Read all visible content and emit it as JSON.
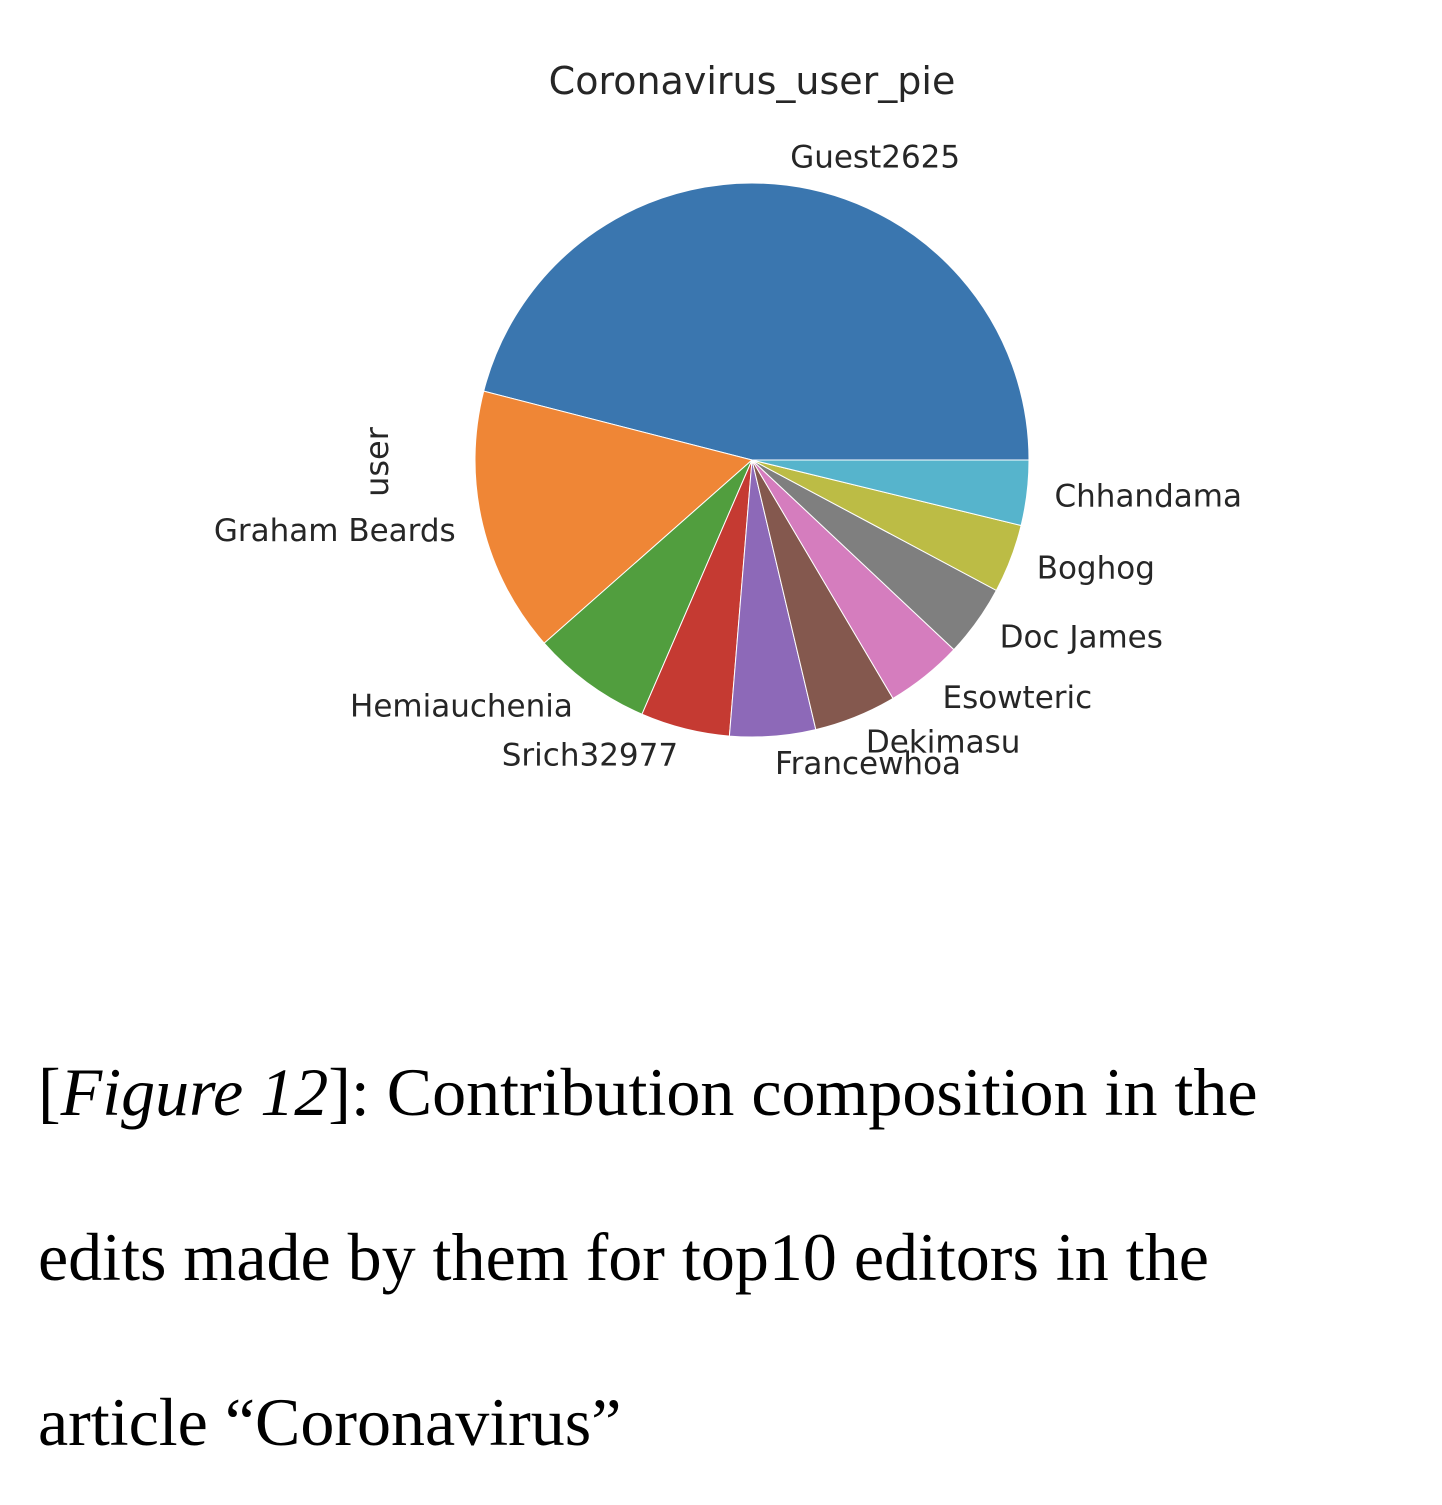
{
  "chart_data": {
    "type": "pie",
    "title": "Coronavirus_user_pie",
    "ylabel": "user",
    "start_angle_deg": 0,
    "direction": "counterclockwise",
    "slices": [
      {
        "label": "Guest2625",
        "value": 46.0,
        "color": "#3a76af"
      },
      {
        "label": "Graham Beards",
        "value": 15.5,
        "color": "#ef8636"
      },
      {
        "label": "Hemiauchenia",
        "value": 7.0,
        "color": "#519e3e"
      },
      {
        "label": "Srich32977",
        "value": 5.2,
        "color": "#c53a32"
      },
      {
        "label": "Francewhoa",
        "value": 5.0,
        "color": "#8d69b8"
      },
      {
        "label": "Dekimasu",
        "value": 4.8,
        "color": "#84584e"
      },
      {
        "label": "Esowteric",
        "value": 4.5,
        "color": "#d57dbe"
      },
      {
        "label": "Doc James",
        "value": 4.2,
        "color": "#7f7f7f"
      },
      {
        "label": "Boghog",
        "value": 4.0,
        "color": "#bcbc45"
      },
      {
        "label": "Chhandama",
        "value": 3.8,
        "color": "#56b4cc"
      }
    ]
  },
  "caption": {
    "figure_ref": "Figure 12",
    "line1_text": ": Contribution composition in the",
    "line2": "edits made by them for top10 editors in the",
    "line3": "article “Coronavirus”"
  }
}
